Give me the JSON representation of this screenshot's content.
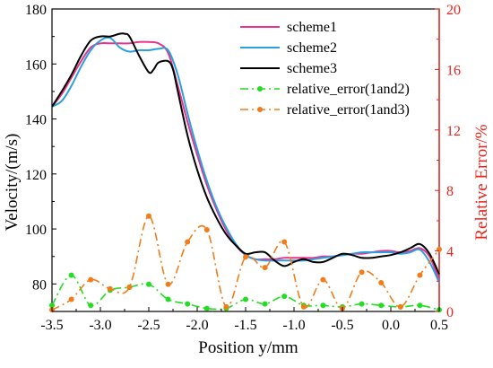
{
  "chart_data": {
    "type": "line",
    "xlabel": "Position y/mm",
    "ylabel_left": "Velocity/(m/s)",
    "ylabel_right": "Relative Error/%",
    "xlim": [
      -3.5,
      0.5
    ],
    "ylim_left": [
      70,
      180
    ],
    "ylim_right": [
      0,
      20
    ],
    "x_ticks": [
      -3.5,
      -3.0,
      -2.5,
      -2.0,
      -1.5,
      -1.0,
      -0.5,
      0.0,
      0.5
    ],
    "x_tick_labels": [
      "-3.5",
      "-3.0",
      "-2.5",
      "-2.0",
      "-1.5",
      "-1.0",
      "-0.5",
      "0.0",
      "0.5"
    ],
    "y_left_ticks": [
      80,
      100,
      120,
      140,
      160,
      180
    ],
    "y_left_tick_labels": [
      "80",
      "100",
      "120",
      "140",
      "160",
      "180"
    ],
    "y_right_ticks": [
      0,
      4,
      8,
      12,
      16,
      20
    ],
    "y_right_tick_labels": [
      "0",
      "4",
      "8",
      "12",
      "16",
      "20"
    ],
    "grid": false,
    "legend_position": "top-right",
    "colors": {
      "scheme1": "#e8358a",
      "scheme2": "#2a9fe0",
      "scheme3": "#000000",
      "relative_error_1and2": "#22dd22",
      "relative_error_1and3": "#f07d1a",
      "right_axis": "#e8241c"
    },
    "series": [
      {
        "name": "scheme1",
        "axis": "left",
        "style": "solid",
        "x": [
          -3.5,
          -3.4,
          -3.3,
          -3.2,
          -3.1,
          -3.0,
          -2.9,
          -2.8,
          -2.7,
          -2.6,
          -2.5,
          -2.4,
          -2.3,
          -2.2,
          -2.1,
          -2.0,
          -1.9,
          -1.8,
          -1.7,
          -1.6,
          -1.5,
          -1.4,
          -1.3,
          -1.2,
          -1.1,
          -1.0,
          -0.9,
          -0.8,
          -0.7,
          -0.6,
          -0.5,
          -0.4,
          -0.3,
          -0.2,
          -0.1,
          0.0,
          0.1,
          0.2,
          0.3,
          0.4,
          0.5
        ],
        "y": [
          144.5,
          149,
          155,
          161,
          166,
          167.5,
          167.5,
          167.5,
          167.5,
          168,
          168,
          167.5,
          164,
          152,
          139,
          127,
          116,
          107,
          99.5,
          94,
          90.5,
          89,
          89,
          89,
          89.5,
          89.5,
          89.5,
          89.5,
          90,
          90,
          90.5,
          91,
          91,
          91.5,
          92,
          92,
          91.5,
          92,
          93,
          90,
          81.5
        ]
      },
      {
        "name": "scheme2",
        "axis": "left",
        "style": "solid",
        "x": [
          -3.5,
          -3.4,
          -3.3,
          -3.2,
          -3.1,
          -3.0,
          -2.9,
          -2.8,
          -2.7,
          -2.6,
          -2.5,
          -2.4,
          -2.3,
          -2.2,
          -2.1,
          -2.0,
          -1.9,
          -1.8,
          -1.7,
          -1.6,
          -1.5,
          -1.4,
          -1.3,
          -1.2,
          -1.1,
          -1.0,
          -0.9,
          -0.8,
          -0.7,
          -0.6,
          -0.5,
          -0.4,
          -0.3,
          -0.2,
          -0.1,
          0.0,
          0.1,
          0.2,
          0.3,
          0.4,
          0.5
        ],
        "y": [
          144.5,
          146.5,
          152,
          159,
          165,
          168.5,
          169.5,
          166,
          164.5,
          165,
          165,
          165.5,
          165,
          156,
          142,
          129,
          117.5,
          108,
          100.5,
          94.5,
          90.5,
          89,
          88.5,
          88.5,
          88.5,
          88.5,
          88.5,
          89,
          89.5,
          90,
          90.5,
          91,
          91.5,
          91.5,
          91.5,
          91.5,
          91,
          91.5,
          92.5,
          88,
          80.5
        ]
      },
      {
        "name": "scheme3",
        "axis": "left",
        "style": "solid",
        "x": [
          -3.5,
          -3.4,
          -3.3,
          -3.2,
          -3.1,
          -3.0,
          -2.9,
          -2.8,
          -2.75,
          -2.7,
          -2.6,
          -2.5,
          -2.45,
          -2.4,
          -2.3,
          -2.25,
          -2.2,
          -2.1,
          -2.0,
          -1.9,
          -1.8,
          -1.7,
          -1.6,
          -1.5,
          -1.4,
          -1.3,
          -1.2,
          -1.1,
          -1.0,
          -0.9,
          -0.8,
          -0.7,
          -0.6,
          -0.5,
          -0.4,
          -0.3,
          -0.2,
          -0.1,
          0.0,
          0.1,
          0.2,
          0.3,
          0.4,
          0.5
        ],
        "y": [
          144.5,
          150,
          156,
          163,
          168.5,
          170,
          170,
          171,
          171,
          170,
          163,
          157,
          158,
          160.5,
          161,
          158,
          150,
          134,
          121.5,
          111.5,
          104,
          98,
          94,
          91,
          91.5,
          91.5,
          88.5,
          86.5,
          88,
          89,
          88,
          88,
          89.5,
          91,
          90.5,
          89.5,
          89.5,
          90,
          90.5,
          91.5,
          93,
          94.5,
          91,
          83.5
        ]
      },
      {
        "name": "relative_error(1and2)",
        "axis": "right",
        "style": "dash-dot",
        "marker": "circle",
        "x": [
          -3.5,
          -3.3,
          -3.1,
          -2.9,
          -2.7,
          -2.5,
          -2.3,
          -2.1,
          -1.9,
          -1.7,
          -1.5,
          -1.3,
          -1.1,
          -0.9,
          -0.7,
          -0.5,
          -0.3,
          -0.1,
          0.1,
          0.3,
          0.5
        ],
        "y": [
          0.4,
          2.4,
          0.4,
          1.4,
          1.6,
          1.8,
          0.8,
          0.5,
          0.2,
          0.2,
          0.8,
          0.5,
          1.0,
          0.4,
          0.4,
          0.3,
          0.5,
          0.4,
          0.3,
          0.4,
          0.1
        ]
      },
      {
        "name": "relative_error(1and3)",
        "axis": "right",
        "style": "dash-dot",
        "marker": "circle",
        "x": [
          -3.5,
          -3.3,
          -3.1,
          -2.9,
          -2.7,
          -2.5,
          -2.3,
          -2.1,
          -1.9,
          -1.7,
          -1.5,
          -1.3,
          -1.1,
          -0.9,
          -0.7,
          -0.5,
          -0.3,
          -0.1,
          0.1,
          0.3,
          0.5
        ],
        "y": [
          0.1,
          0.8,
          2.1,
          1.5,
          1.6,
          6.3,
          1.8,
          4.6,
          5.4,
          0.3,
          3.6,
          2.9,
          4.6,
          0.3,
          2.1,
          0.2,
          2.6,
          1.9,
          0.3,
          2.4,
          4.1
        ]
      }
    ]
  }
}
